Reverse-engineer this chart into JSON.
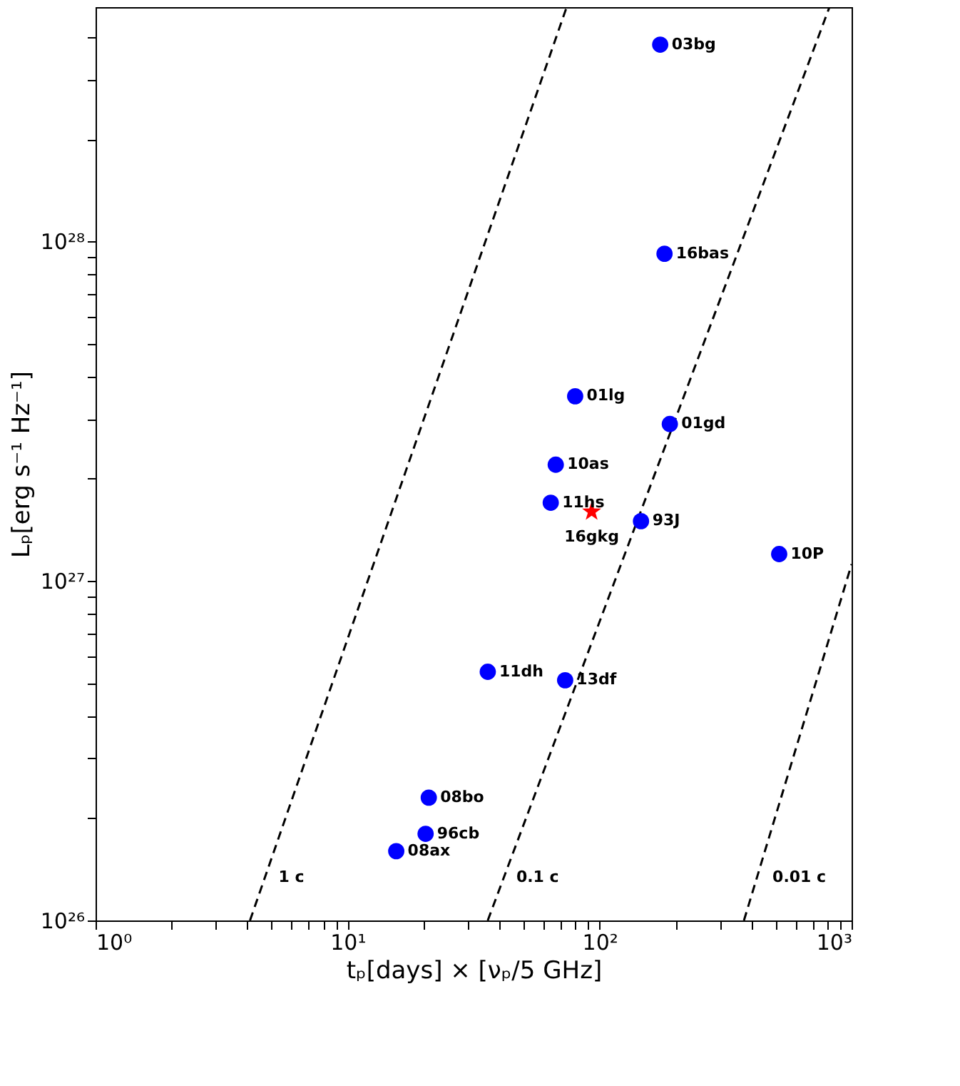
{
  "chart_data": {
    "type": "scatter",
    "xlabel": "tₚ[days] × [νₚ/5 GHz]",
    "ylabel": "Lₚ[erg s⁻¹ Hz⁻¹]",
    "log": "xy",
    "grid": false,
    "xlim": [
      1,
      1000
    ],
    "ylim": [
      1e+26,
      4.9e+28
    ],
    "xticks": [
      {
        "value": 1,
        "label": "10⁰"
      },
      {
        "value": 2,
        "label": null
      },
      {
        "value": 3,
        "label": null
      },
      {
        "value": 4,
        "label": null
      },
      {
        "value": 5,
        "label": null
      },
      {
        "value": 6,
        "label": null
      },
      {
        "value": 7,
        "label": null
      },
      {
        "value": 8,
        "label": null
      },
      {
        "value": 9,
        "label": null
      },
      {
        "value": 10,
        "label": "10¹"
      },
      {
        "value": 20,
        "label": null
      },
      {
        "value": 30,
        "label": null
      },
      {
        "value": 40,
        "label": null
      },
      {
        "value": 50,
        "label": null
      },
      {
        "value": 60,
        "label": null
      },
      {
        "value": 70,
        "label": null
      },
      {
        "value": 80,
        "label": null
      },
      {
        "value": 90,
        "label": null
      },
      {
        "value": 100,
        "label": "10²"
      },
      {
        "value": 200,
        "label": null
      },
      {
        "value": 300,
        "label": null
      },
      {
        "value": 400,
        "label": null
      },
      {
        "value": 500,
        "label": null
      },
      {
        "value": 600,
        "label": null
      },
      {
        "value": 700,
        "label": null
      },
      {
        "value": 800,
        "label": null
      },
      {
        "value": 900,
        "label": null
      },
      {
        "value": 1000,
        "label": "10³"
      }
    ],
    "yticks": [
      {
        "value": 1e+26,
        "label": "10²⁶"
      },
      {
        "value": 2e+26,
        "label": null
      },
      {
        "value": 3e+26,
        "label": null
      },
      {
        "value": 4e+26,
        "label": null
      },
      {
        "value": 5e+26,
        "label": null
      },
      {
        "value": 6e+26,
        "label": null
      },
      {
        "value": 7e+26,
        "label": null
      },
      {
        "value": 8e+26,
        "label": null
      },
      {
        "value": 9e+26,
        "label": null
      },
      {
        "value": 1e+27,
        "label": "10²⁷"
      },
      {
        "value": 2e+27,
        "label": null
      },
      {
        "value": 3e+27,
        "label": null
      },
      {
        "value": 4e+27,
        "label": null
      },
      {
        "value": 5e+27,
        "label": null
      },
      {
        "value": 6e+27,
        "label": null
      },
      {
        "value": 7e+27,
        "label": null
      },
      {
        "value": 8e+27,
        "label": null
      },
      {
        "value": 9e+27,
        "label": null
      },
      {
        "value": 1e+28,
        "label": "10²⁸"
      },
      {
        "value": 2e+28,
        "label": null
      },
      {
        "value": 3e+28,
        "label": null
      },
      {
        "value": 4e+28,
        "label": null
      }
    ],
    "series": [
      {
        "type": "line",
        "x": [
          4.1,
          74
        ],
        "values": [
          1e+26,
          4.9e+28
        ],
        "color": "#000000",
        "line_style": "dashed"
      },
      {
        "type": "line",
        "x": [
          36,
          817
        ],
        "values": [
          1e+26,
          4.9e+28
        ],
        "color": "#000000",
        "line_style": "dashed"
      },
      {
        "type": "line",
        "x": [
          374,
          1000
        ],
        "values": [
          1e+26,
          1.12e+27
        ],
        "color": "#000000",
        "line_style": "dashed"
      },
      {
        "type": "scatter",
        "marker": "circle",
        "color": "#0000ff",
        "x": [
          174,
          181,
          80,
          190,
          67,
          64,
          146,
          516,
          36,
          73,
          21,
          20.4,
          15.6
        ],
        "values": [
          3.8e+28,
          9.2e+27,
          3.5e+27,
          2.9e+27,
          2.2e+27,
          1.7e+27,
          1.5e+27,
          1.2e+27,
          5.4e+26,
          5.1e+26,
          2.3e+26,
          1.8e+26,
          1.6e+26
        ]
      },
      {
        "type": "scatter",
        "marker": "star",
        "color": "#ff0000",
        "x": [
          93
        ],
        "values": [
          1.6e+27
        ]
      }
    ],
    "annotations": [
      {
        "text": "03bg",
        "x": 174,
        "y": 3.8e+28
      },
      {
        "text": "16bas",
        "x": 181,
        "y": 9.2e+27
      },
      {
        "text": "01lg",
        "x": 80,
        "y": 3.5e+27
      },
      {
        "text": "01gd",
        "x": 190,
        "y": 2.9e+27
      },
      {
        "text": "10as",
        "x": 67,
        "y": 2.2e+27
      },
      {
        "text": "11hs",
        "x": 64,
        "y": 1.7e+27
      },
      {
        "text": "93J",
        "x": 146,
        "y": 1.5e+27
      },
      {
        "text": "10P",
        "x": 516,
        "y": 1.2e+27
      },
      {
        "text": "11dh",
        "x": 36,
        "y": 5.4e+26
      },
      {
        "text": "13df",
        "x": 73,
        "y": 5.1e+26
      },
      {
        "text": "08bo",
        "x": 21,
        "y": 2.3e+26
      },
      {
        "text": "96cb",
        "x": 20.4,
        "y": 1.8e+26
      },
      {
        "text": "08ax",
        "x": 15.6,
        "y": 1.6e+26
      },
      {
        "text": "16gkg",
        "x": 93,
        "y": 1.6e+27
      },
      "1 c",
      "0.1 c",
      "0.01 c"
    ]
  }
}
